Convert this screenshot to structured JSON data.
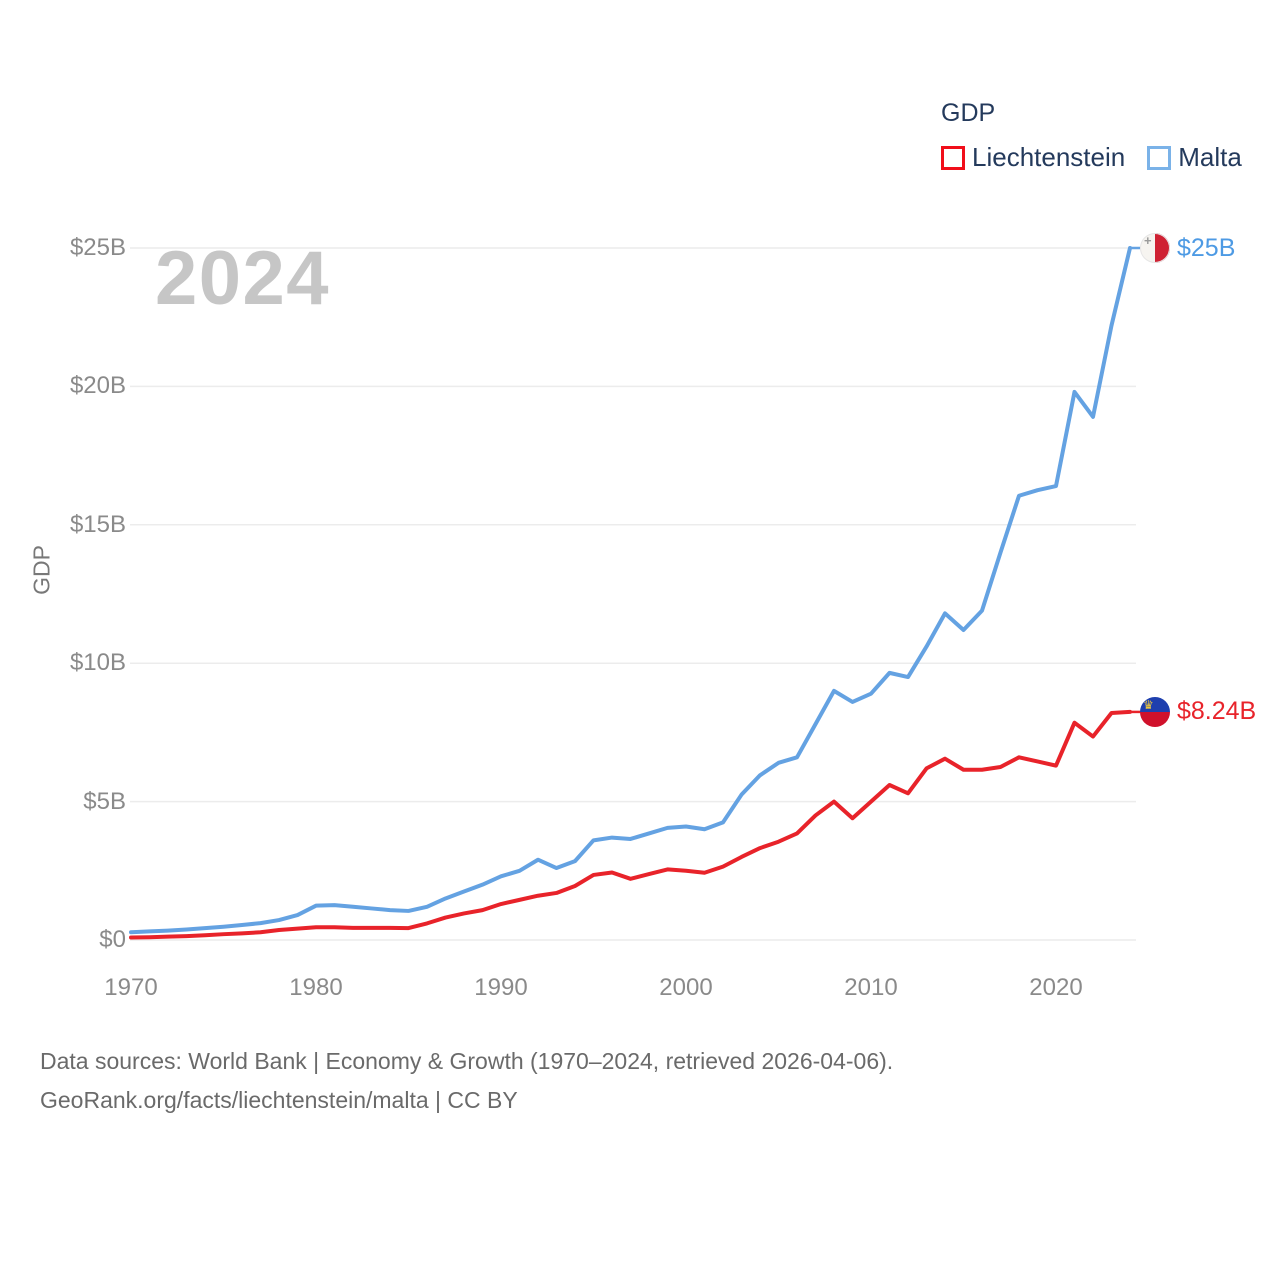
{
  "watermark": "2024",
  "legend": {
    "title": "GDP",
    "items": [
      {
        "label": "Liechtenstein",
        "swatch_color": "#f10e1a"
      },
      {
        "label": "Malta",
        "swatch_color": "#7ab2e8"
      }
    ]
  },
  "end_labels": {
    "malta": {
      "series": "Malta",
      "value": "$25B",
      "color": "#4d9ae4",
      "flag": "malta-flag"
    },
    "liechtenstein": {
      "series": "Liechtenstein",
      "value": "$8.24B",
      "color": "#e8232a",
      "flag": "liechtenstein-flag"
    }
  },
  "footer": {
    "line1": "Data sources: World Bank | Economy & Growth (1970–2024, retrieved 2026-04-06).",
    "line2": "GeoRank.org/facts/liechtenstein/malta | CC BY"
  },
  "colors": {
    "background": "#ffffff",
    "grid": "#ececec",
    "axis_text": "#8a8a8a",
    "legend_text": "#243a5c",
    "footer_text": "#6a6a6a",
    "watermark": "#c6c6c6",
    "liechtenstein_line": "#e8232a",
    "malta_line": "#64a2e2"
  },
  "chart_data": {
    "type": "line",
    "title": "GDP",
    "xlabel": "",
    "ylabel": "GDP",
    "unit": "USD, billions",
    "grid": "horizontal-only",
    "legend_position": "top-right",
    "ylim": [
      0,
      25.2
    ],
    "xlim": [
      1970,
      2024
    ],
    "yticks": {
      "values": [
        0,
        5,
        10,
        15,
        20,
        25
      ],
      "labels": [
        "$0",
        "$5B",
        "$10B",
        "$15B",
        "$20B",
        "$25B"
      ]
    },
    "xticks": {
      "values": [
        1970,
        1980,
        1990,
        2000,
        2010,
        2020
      ],
      "labels": [
        "1970",
        "1980",
        "1990",
        "2000",
        "2010",
        "2020"
      ]
    },
    "x": [
      1970,
      1971,
      1972,
      1973,
      1974,
      1975,
      1976,
      1977,
      1978,
      1979,
      1980,
      1981,
      1982,
      1983,
      1984,
      1985,
      1986,
      1987,
      1988,
      1989,
      1990,
      1991,
      1992,
      1993,
      1994,
      1995,
      1996,
      1997,
      1998,
      1999,
      2000,
      2001,
      2002,
      2003,
      2004,
      2005,
      2006,
      2007,
      2008,
      2009,
      2010,
      2011,
      2012,
      2013,
      2014,
      2015,
      2016,
      2017,
      2018,
      2019,
      2020,
      2021,
      2022,
      2023,
      2024
    ],
    "series": [
      {
        "name": "Liechtenstein",
        "color": "#e8232a",
        "end_label": "$8.24B",
        "values": [
          0.09,
          0.1,
          0.12,
          0.14,
          0.17,
          0.21,
          0.24,
          0.28,
          0.36,
          0.41,
          0.46,
          0.46,
          0.44,
          0.44,
          0.44,
          0.43,
          0.6,
          0.81,
          0.96,
          1.08,
          1.3,
          1.45,
          1.6,
          1.7,
          1.95,
          2.35,
          2.44,
          2.21,
          2.38,
          2.55,
          2.5,
          2.43,
          2.65,
          3.0,
          3.32,
          3.55,
          3.85,
          4.5,
          5.0,
          4.4,
          5.0,
          5.6,
          5.3,
          6.2,
          6.55,
          6.15,
          6.15,
          6.25,
          6.6,
          6.45,
          6.3,
          7.85,
          7.35,
          8.2,
          8.24
        ]
      },
      {
        "name": "Malta",
        "color": "#64a2e2",
        "end_label": "$25B",
        "values": [
          0.28,
          0.31,
          0.34,
          0.38,
          0.43,
          0.48,
          0.54,
          0.61,
          0.72,
          0.9,
          1.24,
          1.26,
          1.2,
          1.14,
          1.08,
          1.05,
          1.2,
          1.5,
          1.75,
          2.0,
          2.3,
          2.5,
          2.9,
          2.6,
          2.85,
          3.6,
          3.7,
          3.65,
          3.85,
          4.05,
          4.1,
          4.0,
          4.25,
          5.25,
          5.95,
          6.4,
          6.6,
          7.8,
          9.0,
          8.6,
          8.9,
          9.65,
          9.5,
          10.6,
          11.8,
          11.2,
          11.9,
          14.0,
          16.05,
          16.25,
          16.4,
          19.8,
          18.9,
          22.2,
          25.0
        ]
      }
    ]
  }
}
